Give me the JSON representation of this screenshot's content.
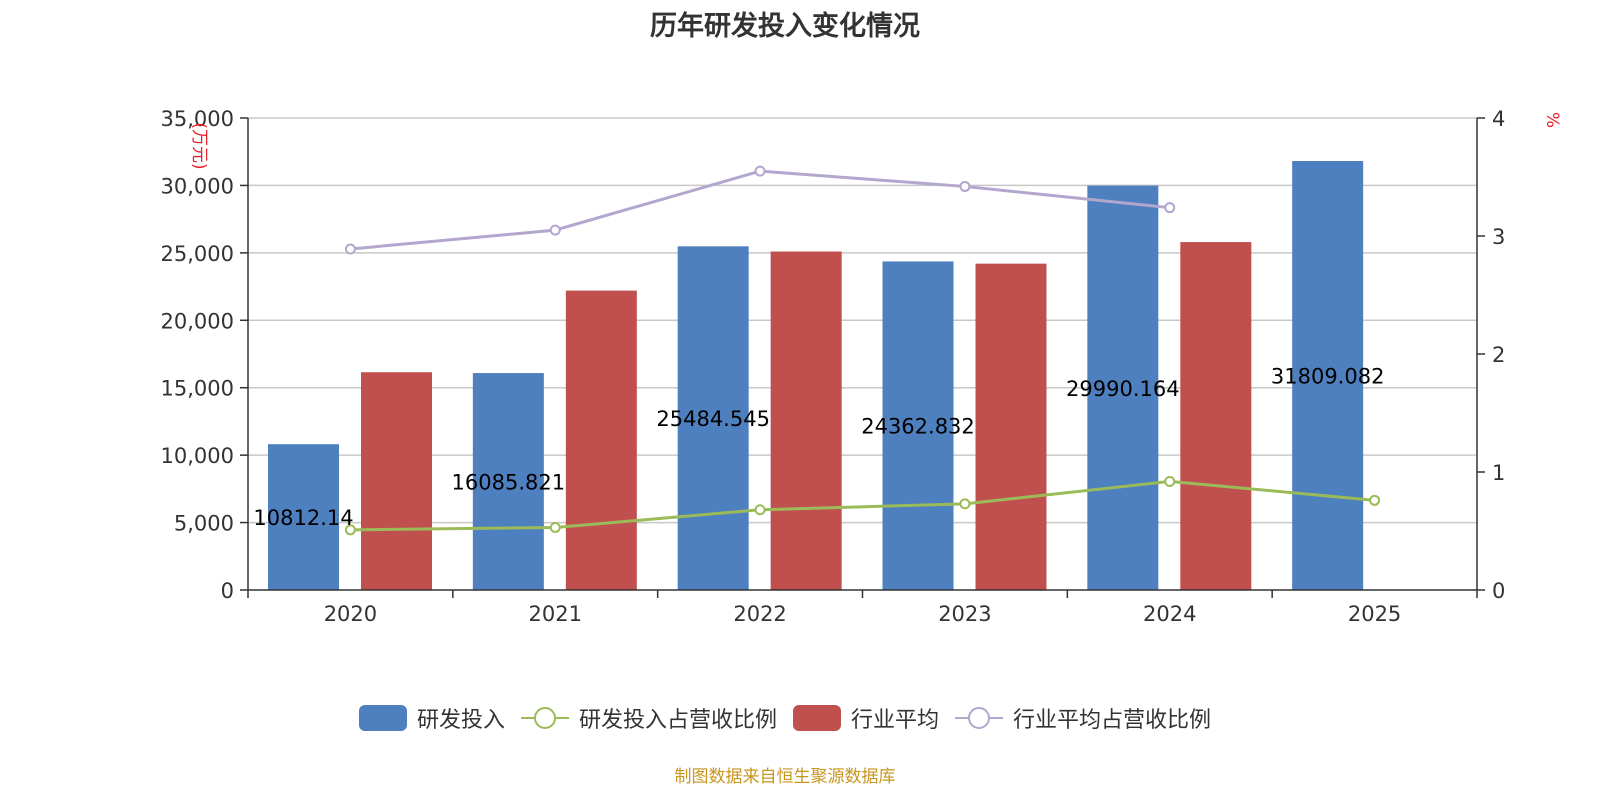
{
  "title": "历年研发投入变化情况",
  "source_note": "制图数据来自恒生聚源数据库",
  "chart_data": {
    "type": "bar",
    "title": "历年研发投入变化情况",
    "categories": [
      "2020",
      "2021",
      "2022",
      "2023",
      "2024",
      "2025"
    ],
    "y_left": {
      "label": "万元",
      "ylim": [
        0,
        35000
      ],
      "ticks": [
        "0",
        "5,000",
        "10,000",
        "15,000",
        "20,000",
        "25,000",
        "30,000",
        "35,000"
      ]
    },
    "y_right": {
      "label": "%",
      "ylim": [
        0,
        4
      ],
      "ticks": [
        "0",
        "1",
        "2",
        "3",
        "4"
      ]
    },
    "series": [
      {
        "name": "研发投入",
        "type": "bar",
        "axis": "left",
        "color": "#4e7fbe",
        "values": [
          10812.14,
          16085.821,
          25484.545,
          24362.832,
          29990.164,
          31809.082
        ],
        "labels": [
          "10812.14",
          "16085.821",
          "25484.545",
          "24362.832",
          "29990.164",
          "31809.082"
        ]
      },
      {
        "name": "研发投入占营收比例",
        "type": "line",
        "axis": "right",
        "color": "#9bbb59",
        "values": [
          0.51,
          0.53,
          0.68,
          0.73,
          0.92,
          0.76
        ]
      },
      {
        "name": "行业平均",
        "type": "bar",
        "axis": "left",
        "color": "#c0504d",
        "values": [
          16150,
          22200,
          25100,
          24200,
          25800,
          null
        ]
      },
      {
        "name": "行业平均占营收比例",
        "type": "line",
        "axis": "right",
        "color": "#b3a6cf",
        "values": [
          2.89,
          3.05,
          3.55,
          3.42,
          3.24,
          null
        ]
      }
    ],
    "legend": "bottom-center",
    "grid": true
  }
}
